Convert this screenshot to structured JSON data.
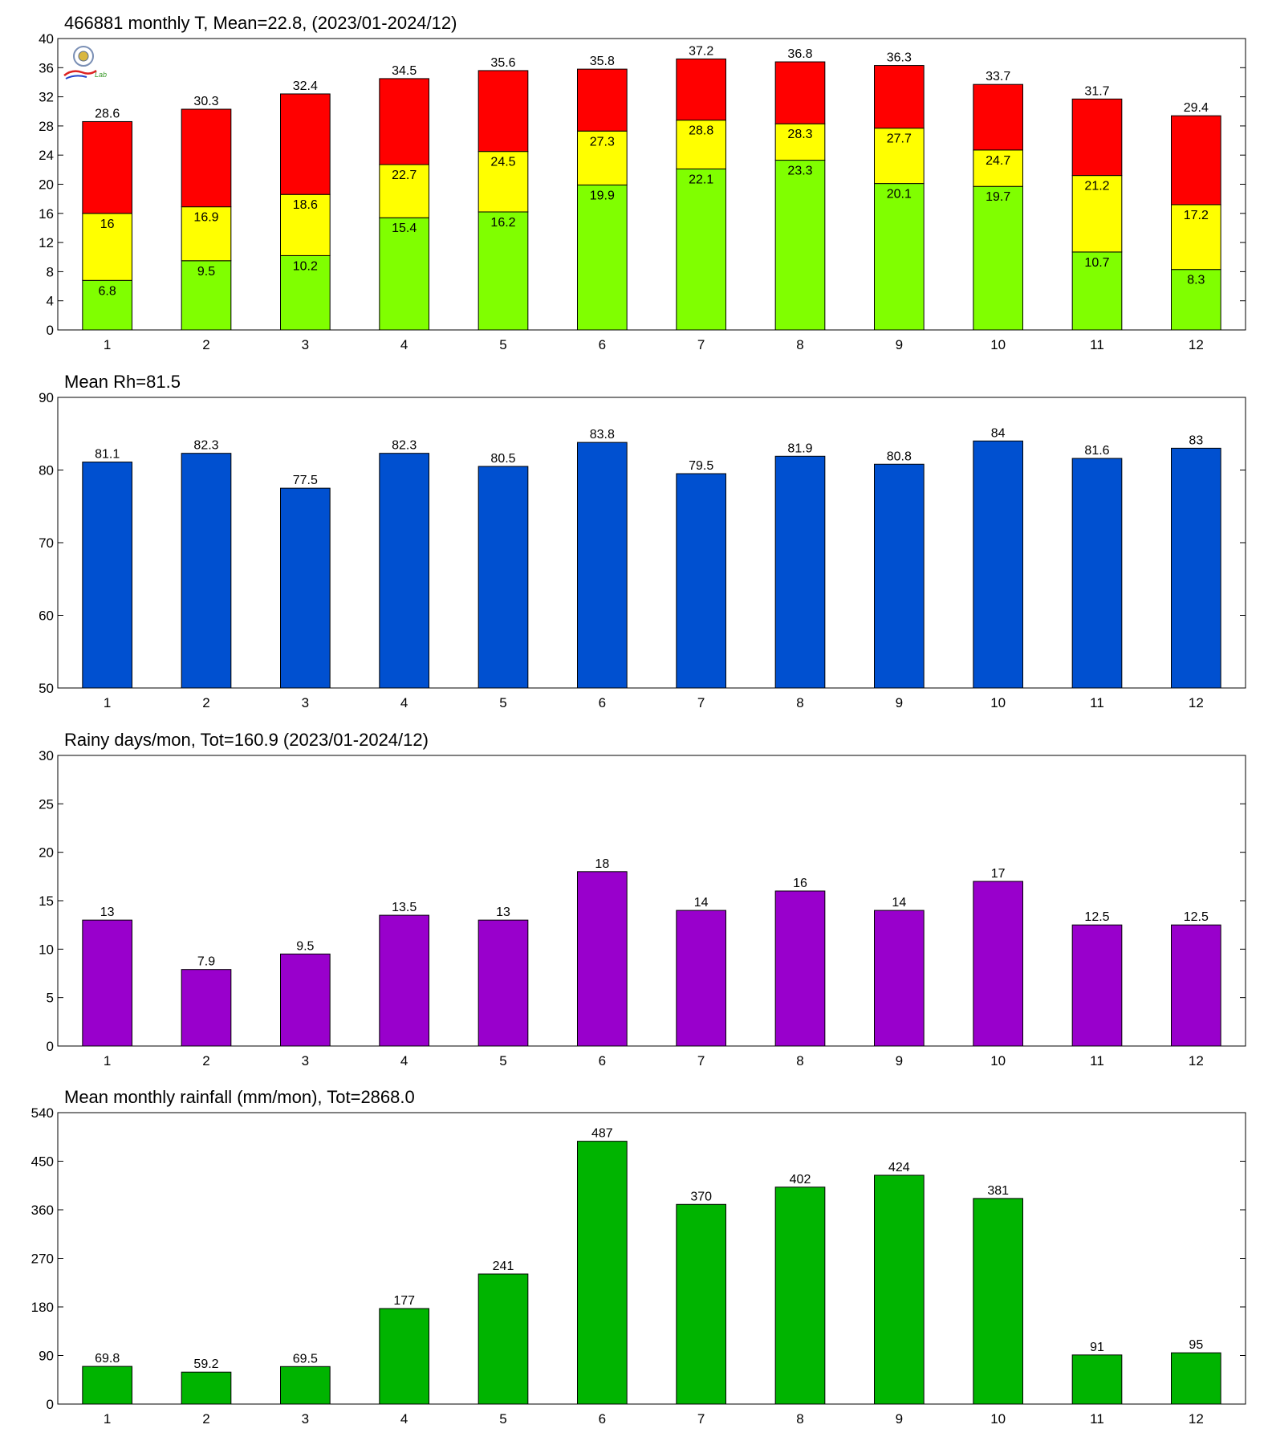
{
  "chart_data": [
    {
      "type": "bar",
      "subtype": "stacked",
      "title": "466881 monthly T, Mean=22.8, (2023/01-2024/12)",
      "categories": [
        "1",
        "2",
        "3",
        "4",
        "5",
        "6",
        "7",
        "8",
        "9",
        "10",
        "11",
        "12"
      ],
      "ylim": [
        0,
        40
      ],
      "yticks": [
        0,
        4,
        8,
        12,
        16,
        20,
        24,
        28,
        32,
        36,
        40
      ],
      "series": [
        {
          "values": [
            6.8,
            9.5,
            10.2,
            15.4,
            16.2,
            19.9,
            22.1,
            23.3,
            20.1,
            19.7,
            10.7,
            8.3
          ],
          "color": "#80ff00"
        },
        {
          "values": [
            16,
            16.9,
            18.6,
            22.7,
            24.5,
            27.3,
            28.8,
            28.3,
            27.7,
            24.7,
            21.2,
            17.2
          ],
          "color": "#ffff00"
        },
        {
          "values": [
            28.6,
            30.3,
            32.4,
            34.5,
            35.6,
            35.8,
            37.2,
            36.8,
            36.3,
            33.7,
            31.7,
            29.4
          ],
          "color": "#ff0000"
        }
      ],
      "logo": {
        "text": "Lab"
      }
    },
    {
      "type": "bar",
      "title": "Mean Rh=81.5",
      "categories": [
        "1",
        "2",
        "3",
        "4",
        "5",
        "6",
        "7",
        "8",
        "9",
        "10",
        "11",
        "12"
      ],
      "ylim": [
        50,
        90
      ],
      "yticks": [
        50,
        60,
        70,
        80,
        90
      ],
      "values": [
        81.1,
        82.3,
        77.5,
        82.3,
        80.5,
        83.8,
        79.5,
        81.9,
        80.8,
        84,
        81.6,
        83
      ],
      "color": "#0050d0"
    },
    {
      "type": "bar",
      "title": "Rainy days/mon, Tot=160.9 (2023/01-2024/12)",
      "categories": [
        "1",
        "2",
        "3",
        "4",
        "5",
        "6",
        "7",
        "8",
        "9",
        "10",
        "11",
        "12"
      ],
      "ylim": [
        0,
        30
      ],
      "yticks": [
        0,
        5,
        10,
        15,
        20,
        25,
        30
      ],
      "values": [
        13,
        7.9,
        9.5,
        13.5,
        13,
        18,
        14,
        16,
        14,
        17,
        12.5,
        12.5
      ],
      "color": "#9900cc"
    },
    {
      "type": "bar",
      "title": "Mean monthly rainfall (mm/mon), Tot=2868.0",
      "categories": [
        "1",
        "2",
        "3",
        "4",
        "5",
        "6",
        "7",
        "8",
        "9",
        "10",
        "11",
        "12"
      ],
      "ylim": [
        0,
        540
      ],
      "yticks": [
        0,
        90,
        180,
        270,
        360,
        450,
        540
      ],
      "values": [
        69.8,
        59.2,
        69.5,
        177,
        241,
        487,
        370,
        402,
        424,
        381,
        91,
        95
      ],
      "color": "#00b400"
    }
  ]
}
